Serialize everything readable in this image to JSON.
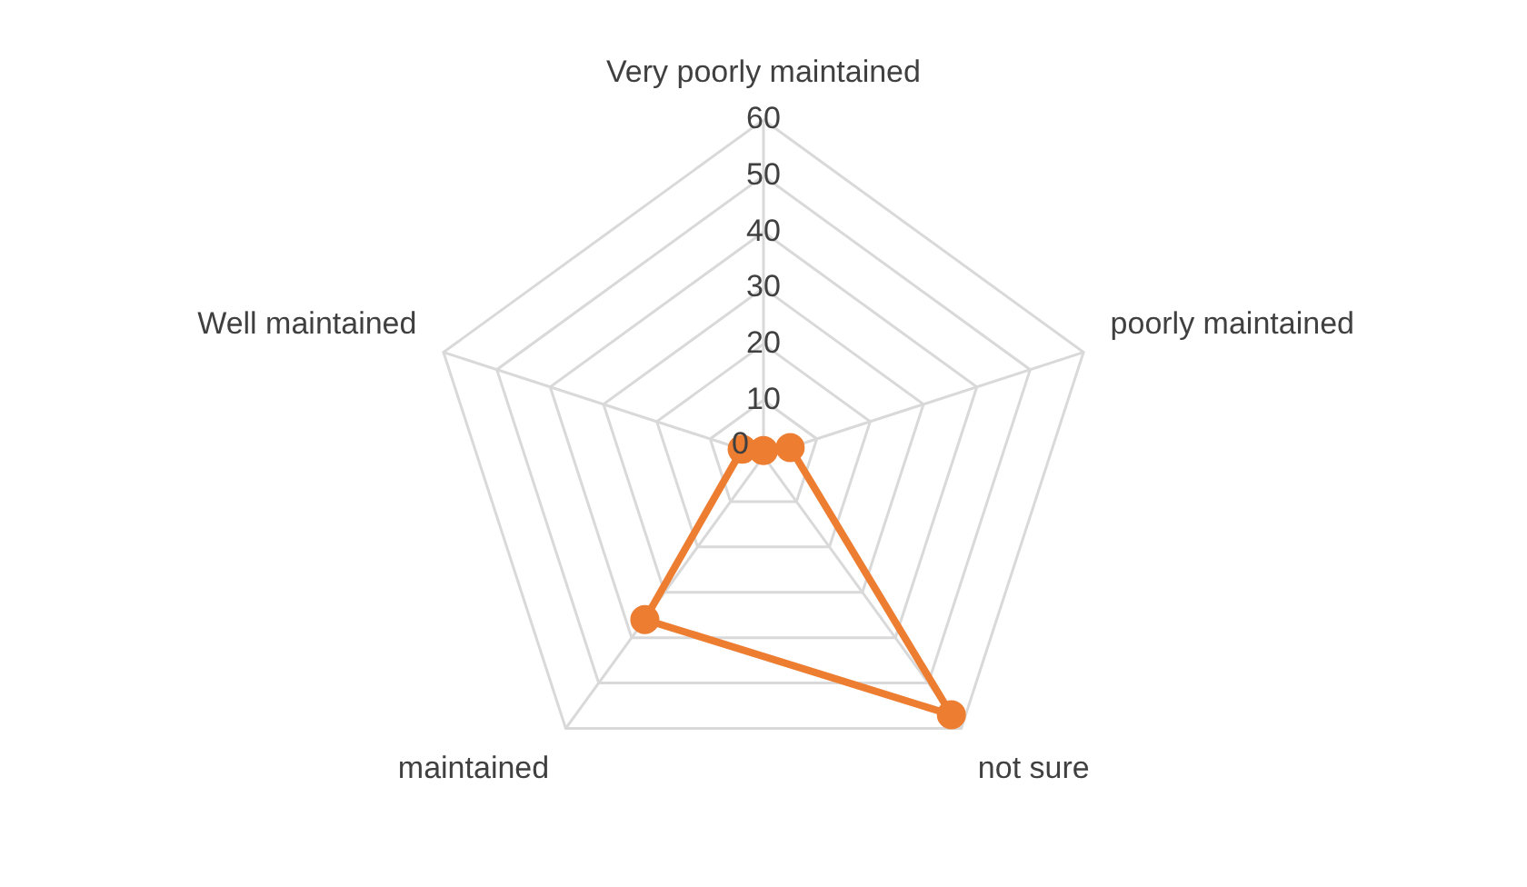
{
  "chart_data": {
    "type": "radar",
    "categories": [
      "Very poorly maintained",
      "poorly maintained",
      "not sure",
      "maintained",
      "Well maintained"
    ],
    "series": [
      {
        "color": "#ed7d31",
        "values": [
          1,
          5,
          57,
          36,
          4
        ]
      }
    ],
    "ylim": [
      0,
      60
    ],
    "yticks": [
      0,
      10,
      20,
      30,
      40,
      50,
      60
    ],
    "grid": true,
    "legend": false,
    "marker": "circle",
    "line_style": "solid"
  }
}
